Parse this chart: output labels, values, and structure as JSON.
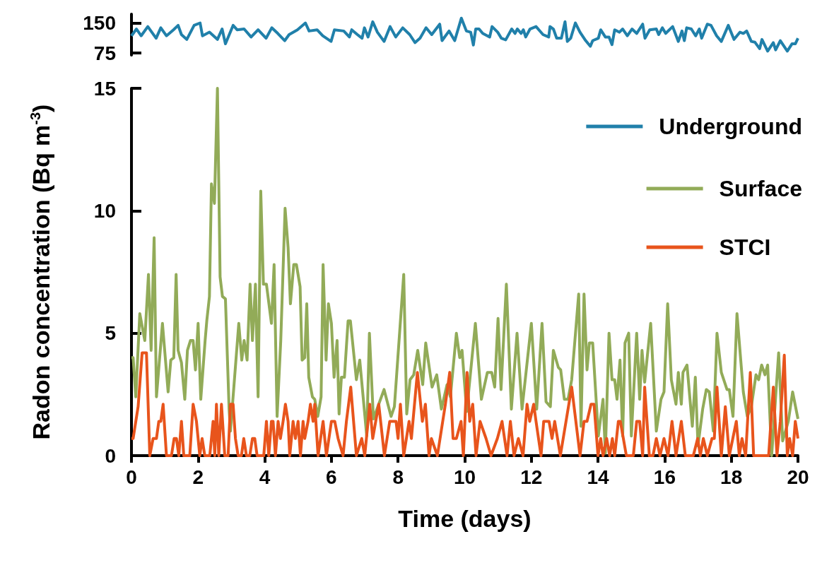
{
  "chart_data": [
    {
      "type": "line",
      "xlim": [
        0,
        20
      ],
      "ylim": [
        70,
        172
      ],
      "yticks": [
        75,
        150
      ],
      "tick_labels": "y",
      "legend": "bottom right",
      "marker": "none",
      "series": [
        {
          "name": "Underground",
          "color": "#2080aa",
          "x": [
            0,
            0.15,
            0.29,
            0.49,
            0.74,
            0.88,
            1.05,
            1.26,
            1.4,
            1.5,
            1.66,
            1.88,
            2.06,
            2.13,
            2.34,
            2.58,
            2.72,
            2.82,
            3.05,
            3.17,
            3.38,
            3.59,
            3.8,
            4.04,
            4.21,
            4.39,
            4.6,
            4.73,
            4.98,
            5.22,
            5.33,
            5.57,
            5.74,
            5.99,
            6.09,
            6.37,
            6.54,
            6.61,
            6.78,
            6.92,
            6.99,
            7.1,
            7.24,
            7.38,
            7.58,
            7.76,
            7.93,
            8.14,
            8.35,
            8.51,
            8.66,
            8.84,
            9.01,
            9.25,
            9.32,
            9.53,
            9.7,
            9.9,
            10.05,
            10.18,
            10.26,
            10.33,
            10.43,
            10.54,
            10.75,
            10.82,
            10.99,
            11.1,
            11.23,
            11.41,
            11.51,
            11.58,
            11.69,
            11.76,
            11.83,
            11.96,
            12.14,
            12.35,
            12.52,
            12.56,
            12.66,
            12.76,
            12.9,
            13.01,
            13.08,
            13.18,
            13.32,
            13.46,
            13.63,
            13.77,
            13.84,
            14.01,
            14.08,
            14.22,
            14.33,
            14.42,
            14.5,
            14.64,
            14.74,
            14.88,
            15.02,
            15.16,
            15.34,
            15.41,
            15.55,
            15.75,
            15.82,
            15.93,
            16.03,
            16.24,
            16.41,
            16.52,
            16.59,
            16.66,
            16.8,
            16.93,
            17.04,
            17.11,
            17.28,
            17.39,
            17.56,
            17.7,
            17.91,
            18.08,
            18.26,
            18.36,
            18.46,
            18.6,
            18.71,
            18.85,
            18.92,
            19.09,
            19.26,
            19.33,
            19.47,
            19.68,
            19.82,
            19.92,
            20
          ],
          "values": [
            118,
            135,
            118,
            141,
            112,
            138,
            118,
            133,
            144,
            121,
            109,
            144,
            150,
            118,
            127,
            109,
            135,
            98,
            144,
            133,
            135,
            115,
            133,
            112,
            138,
            124,
            106,
            121,
            133,
            150,
            130,
            133,
            118,
            104,
            133,
            130,
            115,
            133,
            121,
            112,
            138,
            115,
            153,
            127,
            104,
            141,
            115,
            138,
            121,
            101,
            112,
            138,
            121,
            147,
            106,
            130,
            106,
            162,
            130,
            127,
            95,
            135,
            135,
            124,
            115,
            141,
            127,
            112,
            108,
            135,
            124,
            135,
            124,
            133,
            115,
            135,
            141,
            121,
            115,
            141,
            135,
            112,
            112,
            153,
            104,
            112,
            150,
            127,
            106,
            92,
            106,
            112,
            133,
            115,
            115,
            96,
            133,
            127,
            135,
            118,
            135,
            124,
            147,
            112,
            133,
            135,
            121,
            138,
            124,
            141,
            104,
            130,
            106,
            138,
            135,
            118,
            135,
            112,
            147,
            144,
            118,
            104,
            144,
            109,
            127,
            124,
            130,
            104,
            102,
            86,
            109,
            80,
            101,
            83,
            106,
            80,
            98,
            98,
            112
          ]
        }
      ]
    },
    {
      "type": "line",
      "xlabel": "Time (days)",
      "ylabel": "Radon concentration (Bq m$^{-3}$)",
      "xlim": [
        0,
        20
      ],
      "xticks": [
        0,
        2,
        4,
        6,
        8,
        10,
        12,
        14,
        16,
        18,
        20
      ],
      "ylim": [
        0,
        15
      ],
      "yticks": [
        0,
        5,
        10,
        15
      ],
      "legend": "top right",
      "marker": "none",
      "series": [
        {
          "name": "Surface",
          "color": "#92ab58",
          "x": [
            0,
            0.05,
            0.13,
            0.25,
            0.4,
            0.51,
            0.59,
            0.68,
            0.75,
            0.93,
            1.1,
            1.18,
            1.27,
            1.34,
            1.4,
            1.5,
            1.6,
            1.68,
            1.77,
            1.85,
            1.92,
            2.0,
            2.08,
            2.21,
            2.26,
            2.34,
            2.4,
            2.49,
            2.58,
            2.66,
            2.73,
            2.82,
            2.93,
            2.97,
            3.22,
            3.31,
            3.38,
            3.47,
            3.56,
            3.63,
            3.72,
            3.8,
            3.88,
            3.96,
            4.05,
            4.2,
            4.28,
            4.37,
            4.48,
            4.61,
            4.7,
            4.77,
            4.87,
            4.95,
            5.06,
            5.12,
            5.2,
            5.26,
            5.32,
            5.43,
            5.5,
            5.59,
            5.69,
            5.75,
            5.84,
            5.91,
            6.0,
            6.08,
            6.17,
            6.23,
            6.3,
            6.39,
            6.5,
            6.57,
            6.75,
            6.85,
            7.06,
            7.14,
            7.26,
            7.58,
            7.79,
            7.89,
            8.17,
            8.26,
            8.36,
            8.47,
            8.59,
            8.74,
            8.83,
            9.02,
            9.16,
            9.3,
            9.47,
            9.57,
            9.75,
            9.85,
            9.92,
            10.06,
            10.32,
            10.5,
            10.68,
            10.81,
            10.9,
            11.0,
            11.09,
            11.25,
            11.4,
            11.57,
            11.72,
            12.0,
            12.16,
            12.32,
            12.44,
            12.57,
            12.66,
            12.81,
            12.88,
            12.99,
            13.1,
            13.21,
            13.42,
            13.49,
            13.58,
            13.67,
            13.74,
            13.84,
            14.01,
            14.15,
            14.22,
            14.33,
            14.42,
            14.5,
            14.57,
            14.66,
            14.74,
            14.81,
            14.92,
            15.0,
            15.16,
            15.25,
            15.32,
            15.4,
            15.58,
            15.75,
            15.89,
            15.98,
            16.09,
            16.2,
            16.34,
            16.41,
            16.5,
            16.55,
            16.67,
            16.83,
            16.92,
            17.0,
            17.14,
            17.25,
            17.34,
            17.46,
            17.57,
            17.7,
            17.87,
            17.94,
            18.05,
            18.17,
            18.36,
            18.48,
            18.6,
            18.74,
            18.82,
            18.91,
            19.01,
            19.09,
            19.21,
            19.42,
            19.54,
            19.71,
            19.84,
            20
          ],
          "values": [
            4.0,
            4.0,
            2.4,
            5.8,
            4.7,
            7.4,
            4.3,
            8.9,
            2.4,
            5.4,
            2.6,
            3.9,
            4.0,
            7.4,
            4.3,
            3.8,
            2.3,
            4.3,
            4.7,
            4.7,
            3.5,
            5.4,
            2.3,
            4.7,
            5.5,
            6.5,
            11.1,
            10.3,
            15.0,
            7.3,
            6.5,
            6.4,
            1.9,
            1.0,
            5.4,
            3.9,
            4.7,
            3.9,
            7.0,
            4.7,
            7.0,
            2.4,
            10.8,
            7.0,
            7.0,
            5.4,
            7.8,
            1.6,
            4.7,
            10.1,
            8.5,
            6.2,
            7.8,
            7.8,
            6.9,
            3.9,
            4.0,
            6.2,
            3.2,
            2.4,
            2.3,
            1.6,
            2.4,
            7.8,
            3.9,
            6.2,
            5.4,
            3.2,
            4.7,
            1.7,
            3.2,
            3.2,
            5.5,
            5.5,
            3.1,
            3.9,
            0.8,
            5.0,
            1.5,
            2.7,
            1.6,
            2.0,
            7.4,
            1.7,
            3.1,
            3.3,
            4.3,
            2.9,
            4.6,
            2.8,
            3.3,
            1.9,
            2.9,
            2.4,
            5.0,
            4.0,
            4.3,
            1.8,
            5.4,
            2.3,
            3.4,
            3.4,
            2.8,
            5.6,
            2.7,
            7.0,
            1.9,
            5.0,
            1.9,
            5.4,
            1.9,
            5.4,
            2.2,
            2.0,
            4.3,
            3.6,
            3.5,
            2.3,
            2.3,
            3.1,
            6.6,
            1.2,
            6.6,
            3.5,
            4.6,
            4.6,
            0.8,
            2.3,
            0.1,
            5.0,
            3.1,
            3.1,
            2.3,
            3.9,
            0.8,
            4.6,
            5.0,
            0.8,
            5.0,
            2.3,
            4.3,
            3.0,
            5.4,
            1.0,
            2.3,
            2.6,
            6.2,
            3.1,
            2.1,
            3.4,
            2.1,
            3.4,
            3.7,
            1.2,
            3.2,
            0.4,
            1.9,
            2.7,
            2.6,
            1.0,
            5.0,
            3.4,
            2.7,
            2.7,
            1.6,
            5.8,
            2.6,
            1.6,
            2.0,
            3.3,
            3.1,
            3.7,
            3.3,
            3.7,
            0.0,
            4.2,
            0.6,
            1.4,
            2.6,
            1.5
          ]
        },
        {
          "name": "STCI",
          "color": "#e8541c",
          "x": [
            0,
            0.05,
            0.2,
            0.32,
            0.45,
            0.55,
            0.65,
            0.75,
            0.82,
            0.88,
            0.95,
            1.05,
            1.2,
            1.28,
            1.35,
            1.42,
            1.5,
            1.57,
            1.75,
            1.85,
            1.95,
            2.05,
            2.12,
            2.2,
            2.35,
            2.45,
            2.5,
            2.55,
            2.62,
            2.7,
            2.8,
            2.9,
            2.97,
            3.05,
            3.12,
            3.2,
            3.3,
            3.37,
            3.45,
            3.55,
            3.63,
            3.7,
            3.77,
            3.9,
            3.97,
            4.05,
            4.12,
            4.2,
            4.25,
            4.32,
            4.4,
            4.47,
            4.55,
            4.62,
            4.7,
            4.75,
            4.85,
            4.92,
            5.0,
            5.07,
            5.15,
            5.2,
            5.3,
            5.37,
            5.45,
            5.5,
            5.6,
            5.75,
            5.85,
            6.0,
            6.1,
            6.2,
            6.35,
            6.45,
            6.58,
            6.75,
            6.91,
            7.0,
            7.15,
            7.24,
            7.42,
            7.59,
            7.75,
            7.94,
            8.0,
            8.07,
            8.17,
            8.33,
            8.4,
            8.58,
            8.73,
            8.82,
            8.93,
            9.0,
            9.18,
            9.42,
            9.55,
            9.65,
            9.75,
            9.89,
            9.96,
            10.07,
            10.15,
            10.24,
            10.34,
            10.46,
            10.64,
            10.79,
            10.98,
            11.12,
            11.27,
            11.37,
            11.48,
            11.61,
            11.75,
            11.87,
            11.95,
            12.07,
            12.14,
            12.29,
            12.37,
            12.53,
            12.62,
            12.7,
            12.87,
            13.21,
            13.46,
            13.58,
            13.67,
            13.79,
            13.88,
            14.0,
            14.08,
            14.15,
            14.26,
            14.35,
            14.43,
            14.5,
            14.61,
            14.67,
            14.85,
            15.06,
            15.16,
            15.25,
            15.34,
            15.4,
            15.54,
            15.65,
            15.75,
            15.86,
            15.98,
            16.1,
            16.22,
            16.34,
            16.5,
            16.62,
            16.86,
            16.99,
            17.07,
            17.16,
            17.28,
            17.42,
            17.49,
            17.57,
            17.7,
            17.82,
            17.94,
            18.15,
            18.24,
            18.32,
            18.43,
            18.57,
            18.67,
            19.12,
            19.26,
            19.37,
            19.47,
            19.59,
            19.68,
            19.75,
            19.84,
            19.92,
            20
          ],
          "values": [
            0.7,
            0.7,
            2.0,
            4.2,
            4.2,
            0,
            0.7,
            0.7,
            1.4,
            1.4,
            2.1,
            0,
            0,
            0.7,
            0.7,
            0,
            1.4,
            0,
            0,
            2.1,
            1.4,
            0,
            0.7,
            0,
            0,
            1.4,
            0,
            2.1,
            0,
            2.1,
            0,
            0,
            2.1,
            2.1,
            0.7,
            0,
            0,
            0.7,
            0,
            0,
            0.7,
            0.7,
            0,
            0,
            0,
            1.4,
            0,
            1.4,
            1.4,
            0,
            1.4,
            0.7,
            1.4,
            2.1,
            1.4,
            0,
            1.4,
            0.7,
            1.4,
            0,
            1.4,
            0.7,
            1.4,
            2.1,
            1.4,
            2.1,
            0,
            1.4,
            0,
            1.4,
            1.4,
            0.7,
            0,
            1.4,
            2.8,
            0,
            0.7,
            0,
            2.1,
            0.7,
            2.1,
            0,
            1.4,
            1.4,
            0.7,
            2.1,
            0,
            1.4,
            0.7,
            3.4,
            1.4,
            2.1,
            0,
            0.7,
            0,
            2.1,
            3.4,
            0.7,
            0.7,
            1.4,
            0,
            3.4,
            1.4,
            2.1,
            0,
            1.4,
            0.7,
            0,
            0.7,
            1.4,
            0,
            1.4,
            0,
            0.7,
            0,
            2.1,
            1.4,
            2.1,
            1.4,
            0,
            1.4,
            1.4,
            0.7,
            1.4,
            0,
            2.8,
            0,
            1.4,
            1.4,
            2.1,
            2.1,
            0,
            0.7,
            0,
            0.7,
            0,
            0.7,
            0,
            1.4,
            1.4,
            0,
            0,
            1.4,
            1.4,
            0,
            2.8,
            0,
            0,
            0.7,
            0,
            0.7,
            0,
            1.4,
            0,
            1.4,
            0,
            0,
            0.7,
            0,
            0.7,
            0,
            0.7,
            0.7,
            2.8,
            0,
            2.0,
            0,
            1.4,
            0,
            0.7,
            0,
            3.4,
            0,
            0,
            2.8,
            0,
            1.4,
            4.1,
            0,
            0.7,
            0,
            1.4,
            0.7
          ]
        }
      ]
    }
  ]
}
